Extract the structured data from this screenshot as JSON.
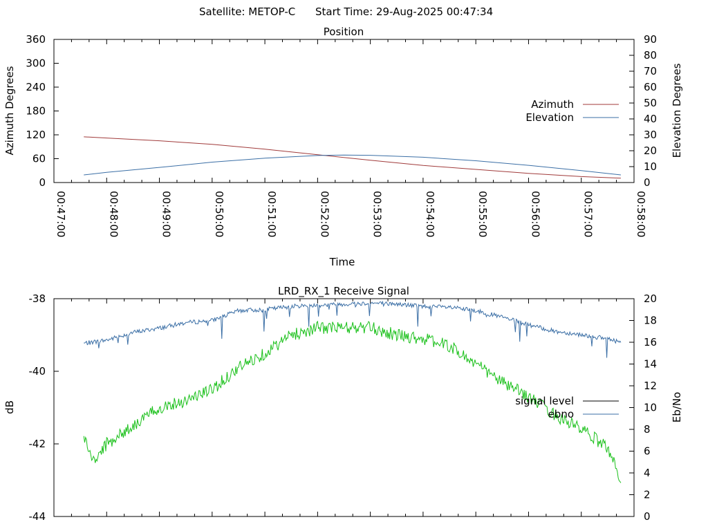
{
  "header": {
    "satellite_label": "Satellite: METOP-C",
    "start_time_label": "Start Time: 29-Aug-2025 00:47:34"
  },
  "colors": {
    "azimuth": "#a03a3a",
    "elevation": "#3a6ea5",
    "signal_level": "#000000",
    "ebno": "#3a6ea5",
    "signal_trace": "#19c019",
    "ebno_trace": "#3a6ea5"
  },
  "chart_data": [
    {
      "type": "line",
      "title": "Position",
      "xlabel": "Time",
      "ylabel": "Azimuth Degrees",
      "y2label": "Elevation Degrees",
      "xlim": [
        "00:47:00",
        "00:58:00"
      ],
      "x_ticks": [
        "00:47:00",
        "00:48:00",
        "00:49:00",
        "00:50:00",
        "00:51:00",
        "00:52:00",
        "00:53:00",
        "00:54:00",
        "00:55:00",
        "00:56:00",
        "00:57:00",
        "00:58:00"
      ],
      "ylim": [
        0,
        360
      ],
      "y_ticks": [
        0,
        60,
        120,
        180,
        240,
        300,
        360
      ],
      "y2lim": [
        0,
        90
      ],
      "y2_ticks": [
        0,
        10,
        20,
        30,
        40,
        50,
        60,
        70,
        80,
        90
      ],
      "legend_position": "right",
      "series": [
        {
          "name": "Azimuth",
          "axis": "y",
          "x": [
            "00:47:34",
            "00:48:00",
            "00:49:00",
            "00:50:00",
            "00:51:00",
            "00:52:00",
            "00:53:00",
            "00:54:00",
            "00:55:00",
            "00:56:00",
            "00:57:00",
            "00:57:45"
          ],
          "values": [
            115,
            112,
            105,
            96,
            84,
            70,
            56,
            43,
            33,
            23,
            15,
            11
          ]
        },
        {
          "name": "Elevation",
          "axis": "y2",
          "x": [
            "00:47:34",
            "00:48:00",
            "00:49:00",
            "00:50:00",
            "00:51:00",
            "00:52:00",
            "00:52:30",
            "00:53:00",
            "00:54:00",
            "00:55:00",
            "00:56:00",
            "00:57:00",
            "00:57:45"
          ],
          "values": [
            4.8,
            6.4,
            9.5,
            12.8,
            15.3,
            17.0,
            17.3,
            17.1,
            15.9,
            13.7,
            10.8,
            7.5,
            4.8
          ]
        }
      ]
    },
    {
      "type": "line",
      "title": "LRD_RX_1 Receive Signal",
      "ylabel": "dB",
      "y2label": "Eb/No",
      "xlim": [
        "00:47:00",
        "00:58:00"
      ],
      "ylim": [
        -44,
        -38
      ],
      "y_ticks": [
        -44,
        -42,
        -40,
        -38
      ],
      "y2lim": [
        0,
        20
      ],
      "y2_ticks": [
        0,
        2,
        4,
        6,
        8,
        10,
        12,
        14,
        16,
        18,
        20
      ],
      "legend_position": "right",
      "series": [
        {
          "name": "signal level",
          "axis": "y",
          "x": [
            "00:47:34",
            "00:47:45",
            "00:48:00",
            "00:48:30",
            "00:49:00",
            "00:49:30",
            "00:50:00",
            "00:50:30",
            "00:51:00",
            "00:51:30",
            "00:52:00",
            "00:52:30",
            "00:53:00",
            "00:53:30",
            "00:54:00",
            "00:54:30",
            "00:55:00",
            "00:55:30",
            "00:56:00",
            "00:56:30",
            "00:57:00",
            "00:57:30",
            "00:57:45"
          ],
          "values": [
            -41.8,
            -42.5,
            -42.0,
            -41.5,
            -41.0,
            -40.8,
            -40.5,
            -39.9,
            -39.5,
            -39.0,
            -38.8,
            -38.8,
            -38.8,
            -39.0,
            -39.1,
            -39.3,
            -39.8,
            -40.3,
            -40.7,
            -41.2,
            -41.6,
            -42.1,
            -43.0
          ]
        },
        {
          "name": "ebno",
          "axis": "y2",
          "x": [
            "00:47:34",
            "00:48:00",
            "00:48:30",
            "00:49:00",
            "00:49:30",
            "00:50:00",
            "00:50:30",
            "00:51:00",
            "00:51:30",
            "00:52:00",
            "00:52:30",
            "00:53:00",
            "00:53:30",
            "00:54:00",
            "00:54:30",
            "00:55:00",
            "00:55:30",
            "00:56:00",
            "00:56:30",
            "00:57:00",
            "00:57:30",
            "00:57:45"
          ],
          "values": [
            15.9,
            16.2,
            16.9,
            17.3,
            17.8,
            18.0,
            18.9,
            19.0,
            19.3,
            19.4,
            19.5,
            19.6,
            19.5,
            19.3,
            19.2,
            18.9,
            18.3,
            17.6,
            17.0,
            16.7,
            16.3,
            16.0
          ]
        }
      ]
    }
  ]
}
